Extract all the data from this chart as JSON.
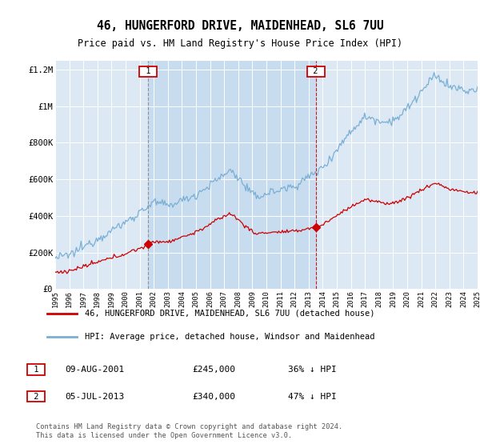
{
  "title": "46, HUNGERFORD DRIVE, MAIDENHEAD, SL6 7UU",
  "subtitle": "Price paid vs. HM Land Registry's House Price Index (HPI)",
  "background_color": "#dce9f5",
  "grid_color": "#b8cfe0",
  "red_line_label": "46, HUNGERFORD DRIVE, MAIDENHEAD, SL6 7UU (detached house)",
  "blue_line_label": "HPI: Average price, detached house, Windsor and Maidenhead",
  "annotation1_date": "09-AUG-2001",
  "annotation1_price": "£245,000",
  "annotation1_hpi": "36% ↓ HPI",
  "annotation2_date": "05-JUL-2013",
  "annotation2_price": "£340,000",
  "annotation2_hpi": "47% ↓ HPI",
  "footnote": "Contains HM Land Registry data © Crown copyright and database right 2024.\nThis data is licensed under the Open Government Licence v3.0.",
  "ylim": [
    0,
    1250000
  ],
  "yticks": [
    0,
    200000,
    400000,
    600000,
    800000,
    1000000,
    1200000
  ],
  "ytick_labels": [
    "£0",
    "£200K",
    "£400K",
    "£600K",
    "£800K",
    "£1M",
    "£1.2M"
  ],
  "marker1_year": 2001.6,
  "marker1_value": 245000,
  "marker2_year": 2013.5,
  "marker2_value": 340000,
  "red_color": "#cc0000",
  "blue_color": "#7aafd4",
  "shade_color": "#c8dcf0",
  "ann1_vline_color": "#888888",
  "ann2_vline_color": "#cc0000"
}
